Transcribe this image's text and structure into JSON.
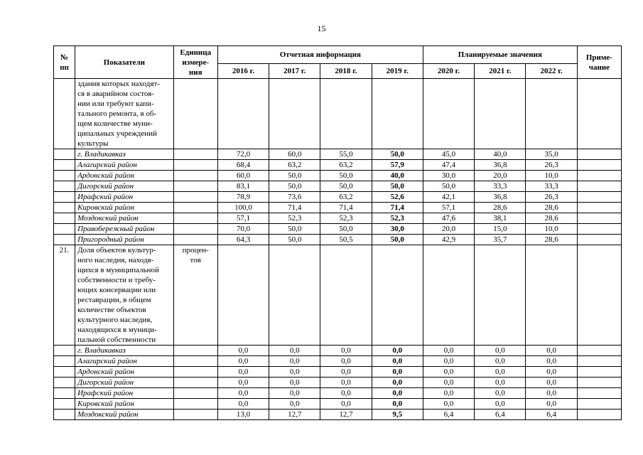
{
  "page_number": "15",
  "table": {
    "headers": {
      "num": "№\nпп",
      "indicators": "Показатели",
      "unit": "Единица\nизмере-\nния",
      "report_group": "Отчетная информация",
      "plan_group": "Планируемые значения",
      "years": [
        "2016 г.",
        "2017 г.",
        "2018 г.",
        "2019 г.",
        "2020 г.",
        "2021 г.",
        "2022 г."
      ],
      "note": "Приме-\nчание"
    },
    "rows": [
      {
        "num": "",
        "indicator": "здания которых находят-\nся  в аварийном состоя-\nнии или требуют капи-\nтального ремонта, в об-\nщем  количестве муни-\nципальных учреждений\nкультуры",
        "unit": "",
        "italic": false,
        "values": [
          "",
          "",
          "",
          "",
          "",
          "",
          ""
        ],
        "note": ""
      },
      {
        "num": "",
        "indicator": "г. Владикавказ",
        "unit": "",
        "italic": true,
        "values": [
          "72,0",
          "60,0",
          "55,0",
          "50,0",
          "45,0",
          "40,0",
          "35,0"
        ],
        "note": ""
      },
      {
        "num": "",
        "indicator": "Алагирский район",
        "unit": "",
        "italic": true,
        "values": [
          "68,4",
          "63,2",
          "63,2",
          "57,9",
          "47,4",
          "36,8",
          "26,3"
        ],
        "note": ""
      },
      {
        "num": "",
        "indicator": "Ардонский район",
        "unit": "",
        "italic": true,
        "values": [
          "60,0",
          "50,0",
          "50,0",
          "40,0",
          "30,0",
          "20,0",
          "10,0"
        ],
        "note": ""
      },
      {
        "num": "",
        "indicator": "Дигорский район",
        "unit": "",
        "italic": true,
        "values": [
          "83,1",
          "50,0",
          "50,0",
          "50,0",
          "50,0",
          "33,3",
          "33,3"
        ],
        "note": ""
      },
      {
        "num": "",
        "indicator": "Ирафский район",
        "unit": "",
        "italic": true,
        "values": [
          "78,9",
          "73,6",
          "63,2",
          "52,6",
          "42,1",
          "36,8",
          "26,3"
        ],
        "note": ""
      },
      {
        "num": "",
        "indicator": "Кировский район",
        "unit": "",
        "italic": true,
        "values": [
          "100,0",
          "71,4",
          "71,4",
          "71,4",
          "57,1",
          "28,6",
          "28,6"
        ],
        "note": ""
      },
      {
        "num": "",
        "indicator": "Моздокский район",
        "unit": "",
        "italic": true,
        "values": [
          "57,1",
          "52,3",
          "52,3",
          "52,3",
          "47,6",
          "38,1",
          "28,6"
        ],
        "note": ""
      },
      {
        "num": "",
        "indicator": "Правобережный район",
        "unit": "",
        "italic": true,
        "values": [
          "70,0",
          "50,0",
          "50,0",
          "30,0",
          "20,0",
          "15,0",
          "10,0"
        ],
        "note": ""
      },
      {
        "num": "",
        "indicator": "Пригородный район",
        "unit": "",
        "italic": true,
        "values": [
          "64,3",
          "50,0",
          "50,5",
          "50,0",
          "42,9",
          "35,7",
          "28,6"
        ],
        "note": ""
      },
      {
        "num": "21.",
        "indicator": "Доля объектов культур-\nного наследия, находя-\nщихся в муниципальной\nсобственности и требу-\nющих консервации или\nреставрации, в общем\nколичестве объектов\nкультурного наследия,\nнаходящихся в муници-\nпальной собственности",
        "unit": "процен-\nтов",
        "italic": false,
        "values": [
          "",
          "",
          "",
          "",
          "",
          "",
          ""
        ],
        "note": ""
      },
      {
        "num": "",
        "indicator": "г. Владикавказ",
        "unit": "",
        "italic": true,
        "values": [
          "0,0",
          "0,0",
          "0,0",
          "0,0",
          "0,0",
          "0,0",
          "0,0"
        ],
        "note": ""
      },
      {
        "num": "",
        "indicator": "Алагирский район",
        "unit": "",
        "italic": true,
        "values": [
          "0,0",
          "0,0",
          "0,0",
          "0,0",
          "0,0",
          "0,0",
          "0,0"
        ],
        "note": ""
      },
      {
        "num": "",
        "indicator": "Ардонский район",
        "unit": "",
        "italic": true,
        "values": [
          "0,0",
          "0,0",
          "0,0",
          "0,0",
          "0,0",
          "0,0",
          "0,0"
        ],
        "note": ""
      },
      {
        "num": "",
        "indicator": "Дигорский район",
        "unit": "",
        "italic": true,
        "values": [
          "0,0",
          "0,0",
          "0,0",
          "0,0",
          "0,0",
          "0,0",
          "0,0"
        ],
        "note": ""
      },
      {
        "num": "",
        "indicator": "Ирафский район",
        "unit": "",
        "italic": true,
        "values": [
          "0,0",
          "0,0",
          "0,0",
          "0,0",
          "0,0",
          "0,0",
          "0,0"
        ],
        "note": ""
      },
      {
        "num": "",
        "indicator": "Кировский район",
        "unit": "",
        "italic": true,
        "values": [
          "0,0",
          "0,0",
          "0,0",
          "0,0",
          "0,0",
          "0,0",
          "0,0"
        ],
        "note": ""
      },
      {
        "num": "",
        "indicator": "Моздокский район",
        "unit": "",
        "italic": true,
        "values": [
          "13,0",
          "12,7",
          "12,7",
          "9,5",
          "6,4",
          "6,4",
          "6,4"
        ],
        "note": ""
      }
    ]
  }
}
